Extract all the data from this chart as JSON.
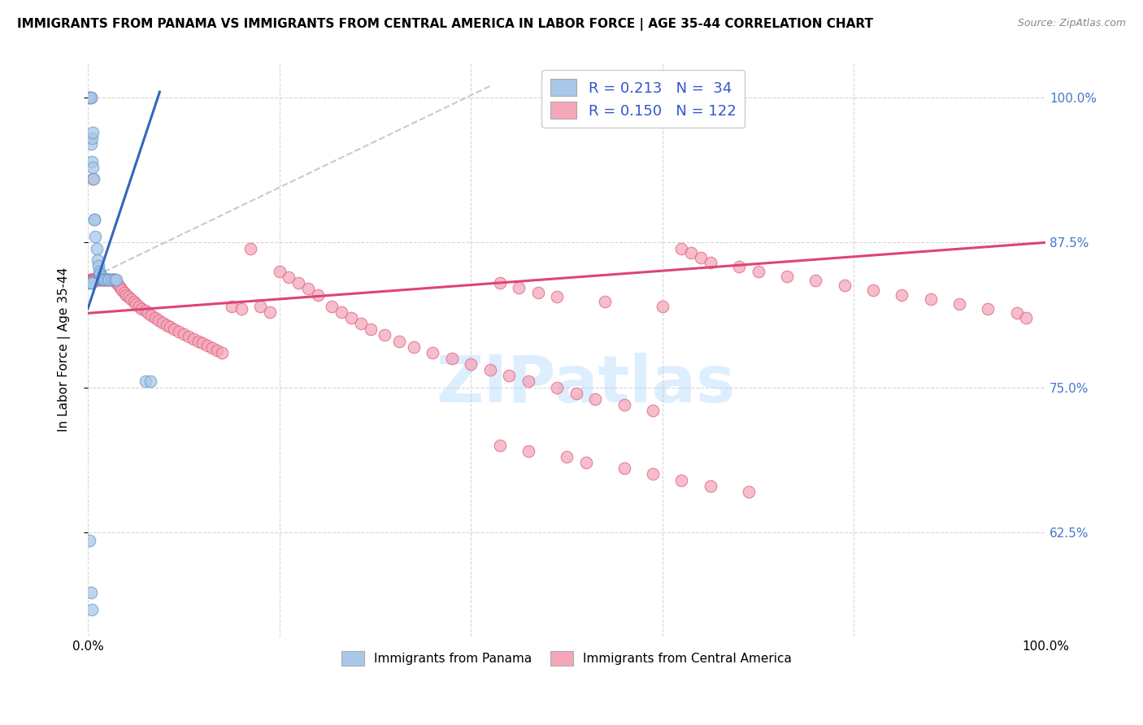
{
  "title": "IMMIGRANTS FROM PANAMA VS IMMIGRANTS FROM CENTRAL AMERICA IN LABOR FORCE | AGE 35-44 CORRELATION CHART",
  "source": "Source: ZipAtlas.com",
  "ylabel": "In Labor Force | Age 35-44",
  "xlim": [
    0.0,
    1.0
  ],
  "ylim": [
    0.535,
    1.03
  ],
  "yticks": [
    0.625,
    0.75,
    0.875,
    1.0
  ],
  "ytick_labels": [
    "62.5%",
    "75.0%",
    "87.5%",
    "100.0%"
  ],
  "xtick_labels": [
    "0.0%",
    "",
    "",
    "",
    "",
    "100.0%"
  ],
  "R_panama": 0.213,
  "N_panama": 34,
  "R_central": 0.15,
  "N_central": 122,
  "blue_color": "#a8c8e8",
  "pink_color": "#f4a7b9",
  "blue_edge_color": "#6699cc",
  "pink_edge_color": "#e06080",
  "blue_line_color": "#3366bb",
  "pink_line_color": "#dd4477",
  "diag_color": "#bbbbcc",
  "watermark_color": "#ddeeff",
  "panama_x": [
    0.002,
    0.002,
    0.003,
    0.003,
    0.004,
    0.004,
    0.005,
    0.005,
    0.006,
    0.007,
    0.007,
    0.008,
    0.009,
    0.01,
    0.011,
    0.012,
    0.013,
    0.014,
    0.015,
    0.016,
    0.018,
    0.02,
    0.022,
    0.025,
    0.028,
    0.03,
    0.002,
    0.003,
    0.004,
    0.06,
    0.002,
    0.003,
    0.004,
    0.065
  ],
  "panama_y": [
    1.0,
    1.0,
    1.0,
    0.96,
    0.965,
    0.945,
    0.94,
    0.97,
    0.93,
    0.895,
    0.895,
    0.88,
    0.87,
    0.86,
    0.855,
    0.85,
    0.848,
    0.846,
    0.844,
    0.843,
    0.843,
    0.843,
    0.843,
    0.843,
    0.843,
    0.843,
    0.84,
    0.84,
    0.84,
    0.755,
    0.618,
    0.573,
    0.558,
    0.755
  ],
  "central_x": [
    0.002,
    0.003,
    0.003,
    0.004,
    0.005,
    0.005,
    0.006,
    0.007,
    0.008,
    0.009,
    0.01,
    0.01,
    0.011,
    0.012,
    0.013,
    0.014,
    0.015,
    0.016,
    0.017,
    0.018,
    0.019,
    0.02,
    0.021,
    0.022,
    0.023,
    0.025,
    0.026,
    0.027,
    0.028,
    0.03,
    0.032,
    0.034,
    0.036,
    0.038,
    0.04,
    0.042,
    0.045,
    0.048,
    0.05,
    0.053,
    0.056,
    0.06,
    0.063,
    0.066,
    0.07,
    0.074,
    0.078,
    0.082,
    0.086,
    0.09,
    0.095,
    0.1,
    0.105,
    0.11,
    0.115,
    0.12,
    0.125,
    0.13,
    0.135,
    0.14,
    0.15,
    0.16,
    0.17,
    0.18,
    0.19,
    0.2,
    0.21,
    0.22,
    0.23,
    0.24,
    0.255,
    0.265,
    0.275,
    0.285,
    0.295,
    0.31,
    0.325,
    0.34,
    0.36,
    0.38,
    0.4,
    0.42,
    0.44,
    0.46,
    0.49,
    0.51,
    0.53,
    0.56,
    0.59,
    0.005,
    0.43,
    0.45,
    0.47,
    0.49,
    0.54,
    0.6,
    0.62,
    0.63,
    0.64,
    0.65,
    0.68,
    0.7,
    0.73,
    0.76,
    0.79,
    0.82,
    0.85,
    0.88,
    0.91,
    0.94,
    0.97,
    0.98,
    0.43,
    0.46,
    0.5,
    0.52,
    0.56,
    0.59,
    0.62,
    0.65,
    0.69,
    0.003
  ],
  "central_y": [
    0.843,
    0.843,
    0.843,
    0.843,
    0.843,
    0.843,
    0.843,
    0.843,
    0.843,
    0.843,
    0.843,
    0.843,
    0.843,
    0.843,
    0.843,
    0.843,
    0.843,
    0.843,
    0.843,
    0.843,
    0.843,
    0.843,
    0.843,
    0.843,
    0.843,
    0.843,
    0.843,
    0.843,
    0.843,
    0.84,
    0.838,
    0.836,
    0.834,
    0.832,
    0.83,
    0.828,
    0.826,
    0.824,
    0.822,
    0.82,
    0.818,
    0.816,
    0.814,
    0.812,
    0.81,
    0.808,
    0.806,
    0.804,
    0.802,
    0.8,
    0.798,
    0.796,
    0.794,
    0.792,
    0.79,
    0.788,
    0.786,
    0.784,
    0.782,
    0.78,
    0.82,
    0.818,
    0.87,
    0.82,
    0.815,
    0.85,
    0.845,
    0.84,
    0.835,
    0.83,
    0.82,
    0.815,
    0.81,
    0.805,
    0.8,
    0.795,
    0.79,
    0.785,
    0.78,
    0.775,
    0.77,
    0.765,
    0.76,
    0.755,
    0.75,
    0.745,
    0.74,
    0.735,
    0.73,
    0.93,
    0.84,
    0.836,
    0.832,
    0.828,
    0.824,
    0.82,
    0.87,
    0.866,
    0.862,
    0.858,
    0.854,
    0.85,
    0.846,
    0.842,
    0.838,
    0.834,
    0.83,
    0.826,
    0.822,
    0.818,
    0.814,
    0.81,
    0.7,
    0.695,
    0.69,
    0.685,
    0.68,
    0.675,
    0.67,
    0.665,
    0.66,
    1.0
  ]
}
